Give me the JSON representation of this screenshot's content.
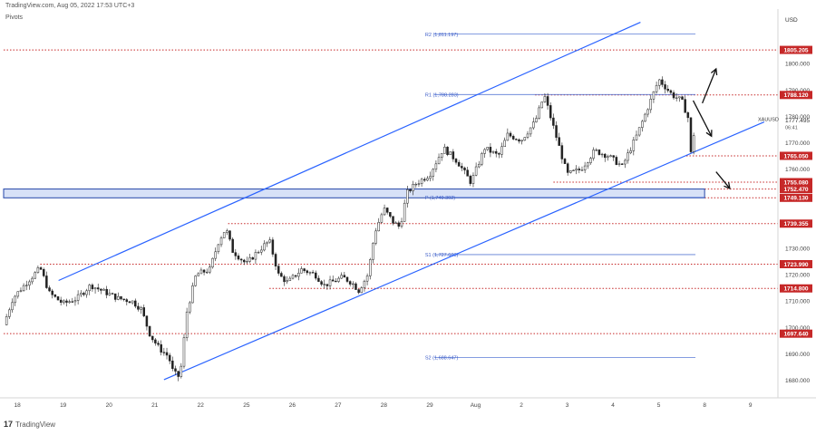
{
  "header": {
    "source_line": "TradingView.com, Aug 05, 2022 17:53 UTC+3",
    "indicator": "Pivots"
  },
  "footer": {
    "brand": "TradingView",
    "logo_glyph": "17"
  },
  "chart_data": {
    "type": "candlestick",
    "symbol": "XAUUSD",
    "currency": "USD",
    "last_price": "1777.495",
    "countdown": "06:41",
    "ylim": [
      1674,
      1820
    ],
    "y_ticks": [
      1680,
      1690,
      1700,
      1710,
      1720,
      1730,
      1740,
      1750,
      1760,
      1770,
      1780,
      1790,
      1800
    ],
    "y_tick_labels": [
      "1680.000",
      "1690.000",
      "1700.000",
      "1710.000",
      "1720.000",
      "1730.000",
      "1740.000",
      "1750.000",
      "1760.000",
      "1770.000",
      "1780.000",
      "1790.000",
      "1800.000"
    ],
    "x_ticks": [
      {
        "label": "18",
        "x": 0.3
      },
      {
        "label": "19",
        "x": 1.3
      },
      {
        "label": "20",
        "x": 2.3
      },
      {
        "label": "21",
        "x": 3.3
      },
      {
        "label": "22",
        "x": 4.3
      },
      {
        "label": "25",
        "x": 5.3
      },
      {
        "label": "26",
        "x": 6.3
      },
      {
        "label": "27",
        "x": 7.3
      },
      {
        "label": "28",
        "x": 8.3
      },
      {
        "label": "29",
        "x": 9.3
      },
      {
        "label": "Aug",
        "x": 10.3
      },
      {
        "label": "2",
        "x": 11.3
      },
      {
        "label": "3",
        "x": 12.3
      },
      {
        "label": "4",
        "x": 13.3
      },
      {
        "label": "5",
        "x": 14.3
      },
      {
        "label": "8",
        "x": 15.3
      },
      {
        "label": "9",
        "x": 16.3
      }
    ],
    "price_levels": [
      {
        "label": "1805.205",
        "value": 1805.205
      },
      {
        "label": "1788.120",
        "value": 1788.12
      },
      {
        "label": "1765.050",
        "value": 1765.05
      },
      {
        "label": "1755.080",
        "value": 1755.08
      },
      {
        "label": "1752.470",
        "value": 1752.47
      },
      {
        "label": "1749.130",
        "value": 1749.13
      },
      {
        "label": "1739.355",
        "value": 1739.355
      },
      {
        "label": "1723.990",
        "value": 1723.99
      },
      {
        "label": "1714.800",
        "value": 1714.8
      },
      {
        "label": "1697.640",
        "value": 1697.64
      }
    ],
    "pivots": [
      {
        "label": "R2 (1,811.197)",
        "value": 1811.197
      },
      {
        "label": "R1 (1,788.283)",
        "value": 1788.283
      },
      {
        "label": "P (1,749.302)",
        "value": 1749.302
      },
      {
        "label": "S1 (1,727.608)",
        "value": 1727.608
      },
      {
        "label": "S2 (1,688.647)",
        "value": 1688.647
      }
    ],
    "support_zone": [
      1749.13,
      1752.47
    ],
    "channel": {
      "upper": [
        [
          1.2,
          1717.8
        ],
        [
          13.9,
          1815.7
        ]
      ],
      "lower": [
        [
          3.5,
          1680.2
        ],
        [
          16.6,
          1777.9
        ]
      ]
    },
    "price_path": [
      [
        0.0,
        1701
      ],
      [
        0.2,
        1711
      ],
      [
        0.5,
        1717
      ],
      [
        0.8,
        1722.5
      ],
      [
        1.0,
        1713
      ],
      [
        1.3,
        1709
      ],
      [
        1.6,
        1711
      ],
      [
        1.9,
        1716
      ],
      [
        2.2,
        1713.5
      ],
      [
        2.5,
        1711
      ],
      [
        2.8,
        1710
      ],
      [
        3.0,
        1707
      ],
      [
        3.2,
        1697
      ],
      [
        3.4,
        1692
      ],
      [
        3.6,
        1689
      ],
      [
        3.7,
        1683
      ],
      [
        3.85,
        1681
      ],
      [
        4.0,
        1706
      ],
      [
        4.2,
        1720
      ],
      [
        4.5,
        1722
      ],
      [
        4.7,
        1733
      ],
      [
        4.85,
        1737.5
      ],
      [
        5.0,
        1729
      ],
      [
        5.3,
        1724
      ],
      [
        5.5,
        1728
      ],
      [
        5.8,
        1733
      ],
      [
        6.0,
        1720
      ],
      [
        6.2,
        1717
      ],
      [
        6.5,
        1722
      ],
      [
        6.8,
        1720
      ],
      [
        7.0,
        1716
      ],
      [
        7.2,
        1717.5
      ],
      [
        7.4,
        1719
      ],
      [
        7.6,
        1717
      ],
      [
        7.75,
        1714
      ],
      [
        7.95,
        1720
      ],
      [
        8.1,
        1736
      ],
      [
        8.3,
        1745
      ],
      [
        8.5,
        1740
      ],
      [
        8.65,
        1738
      ],
      [
        8.8,
        1751
      ],
      [
        9.0,
        1754.5
      ],
      [
        9.3,
        1758
      ],
      [
        9.6,
        1768
      ],
      [
        9.9,
        1763
      ],
      [
        10.2,
        1755
      ],
      [
        10.5,
        1768
      ],
      [
        10.8,
        1765
      ],
      [
        11.0,
        1773
      ],
      [
        11.3,
        1771
      ],
      [
        11.6,
        1778
      ],
      [
        11.8,
        1788
      ],
      [
        12.0,
        1776
      ],
      [
        12.3,
        1758
      ],
      [
        12.6,
        1760
      ],
      [
        12.9,
        1767
      ],
      [
        13.2,
        1765
      ],
      [
        13.5,
        1761
      ],
      [
        13.8,
        1772
      ],
      [
        14.1,
        1785
      ],
      [
        14.3,
        1794
      ],
      [
        14.6,
        1788
      ],
      [
        14.8,
        1786
      ],
      [
        14.95,
        1779
      ],
      [
        15.0,
        1766
      ],
      [
        15.1,
        1777.5
      ]
    ],
    "arrows": [
      {
        "from": [
          15.25,
          1785.0
        ],
        "to": [
          15.55,
          1798.0
        ]
      },
      {
        "from": [
          15.05,
          1786.0
        ],
        "to": [
          15.45,
          1772.5
        ]
      },
      {
        "from": [
          15.55,
          1759.0
        ],
        "to": [
          15.85,
          1752.7
        ]
      }
    ]
  }
}
